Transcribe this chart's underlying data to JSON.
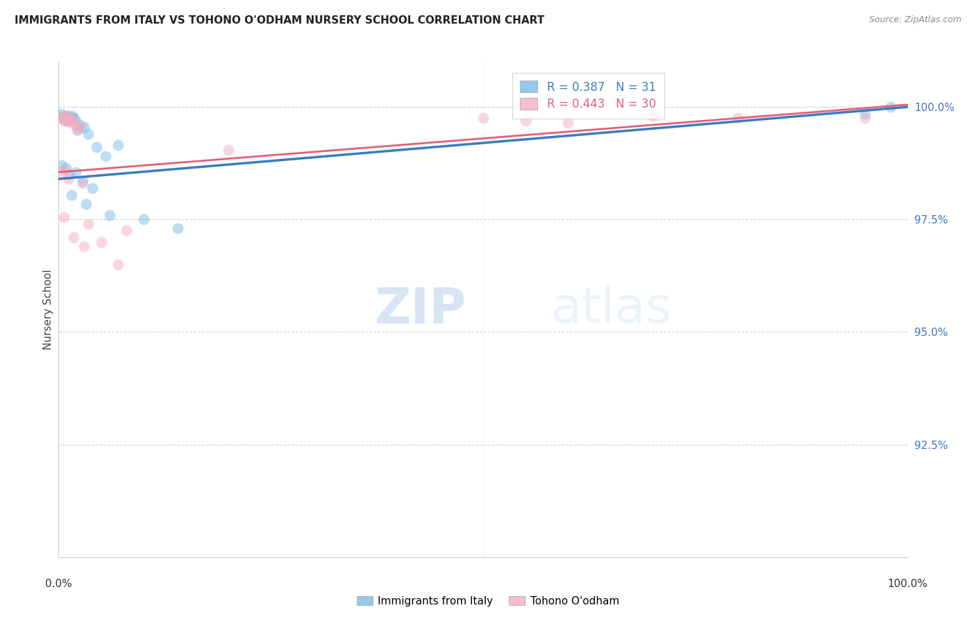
{
  "title": "IMMIGRANTS FROM ITALY VS TOHONO O'ODHAM NURSERY SCHOOL CORRELATION CHART",
  "source": "Source: ZipAtlas.com",
  "ylabel": "Nursery School",
  "legend_blue_r": "0.387",
  "legend_blue_n": "31",
  "legend_pink_r": "0.443",
  "legend_pink_n": "30",
  "blue_color": "#7bbce8",
  "pink_color": "#f5aec0",
  "trend_blue": "#3a7cbf",
  "trend_pink": "#e0607a",
  "blue_points_x": [
    0.3,
    0.5,
    0.7,
    0.8,
    1.0,
    1.1,
    1.2,
    1.4,
    1.6,
    1.8,
    2.0,
    2.3,
    2.5,
    3.0,
    3.5,
    4.5,
    5.5,
    7.0,
    0.4,
    0.9,
    1.3,
    2.0,
    2.8,
    4.0,
    1.5,
    3.2,
    6.0,
    10.0,
    14.0,
    95.0,
    98.0
  ],
  "blue_points_y": [
    99.85,
    99.75,
    99.8,
    99.7,
    99.75,
    99.8,
    99.7,
    99.75,
    99.8,
    99.75,
    99.7,
    99.5,
    99.6,
    99.55,
    99.4,
    99.1,
    98.9,
    99.15,
    98.7,
    98.65,
    98.5,
    98.55,
    98.35,
    98.2,
    98.05,
    97.85,
    97.6,
    97.5,
    97.3,
    99.85,
    100.0
  ],
  "pink_points_x": [
    0.3,
    0.5,
    0.7,
    0.9,
    1.0,
    1.1,
    1.3,
    1.5,
    1.7,
    2.0,
    2.2,
    2.5,
    0.4,
    0.8,
    1.2,
    2.8,
    3.5,
    5.0,
    8.0,
    0.6,
    1.8,
    3.0,
    7.0,
    20.0,
    50.0,
    55.0,
    60.0,
    70.0,
    80.0,
    95.0
  ],
  "pink_points_y": [
    99.75,
    99.8,
    99.7,
    99.75,
    99.8,
    99.7,
    99.75,
    99.65,
    99.7,
    99.6,
    99.5,
    99.55,
    98.55,
    98.6,
    98.4,
    98.3,
    97.4,
    97.0,
    97.25,
    97.55,
    97.1,
    96.9,
    96.5,
    99.05,
    99.75,
    99.7,
    99.65,
    99.8,
    99.75,
    99.75
  ],
  "watermark_zip": "ZIP",
  "watermark_atlas": "atlas",
  "xmin": 0.0,
  "xmax": 100.0,
  "ymin": 90.0,
  "ymax": 101.0,
  "ytick_vals": [
    92.5,
    95.0,
    97.5,
    100.0
  ],
  "ytick_labels": [
    "92.5%",
    "95.0%",
    "97.5%",
    "100.0%"
  ],
  "trend_blue_x0": 0.0,
  "trend_blue_y0": 98.4,
  "trend_blue_x1": 100.0,
  "trend_blue_y1": 100.0,
  "trend_pink_x0": 0.0,
  "trend_pink_y0": 98.55,
  "trend_pink_x1": 100.0,
  "trend_pink_y1": 100.05
}
